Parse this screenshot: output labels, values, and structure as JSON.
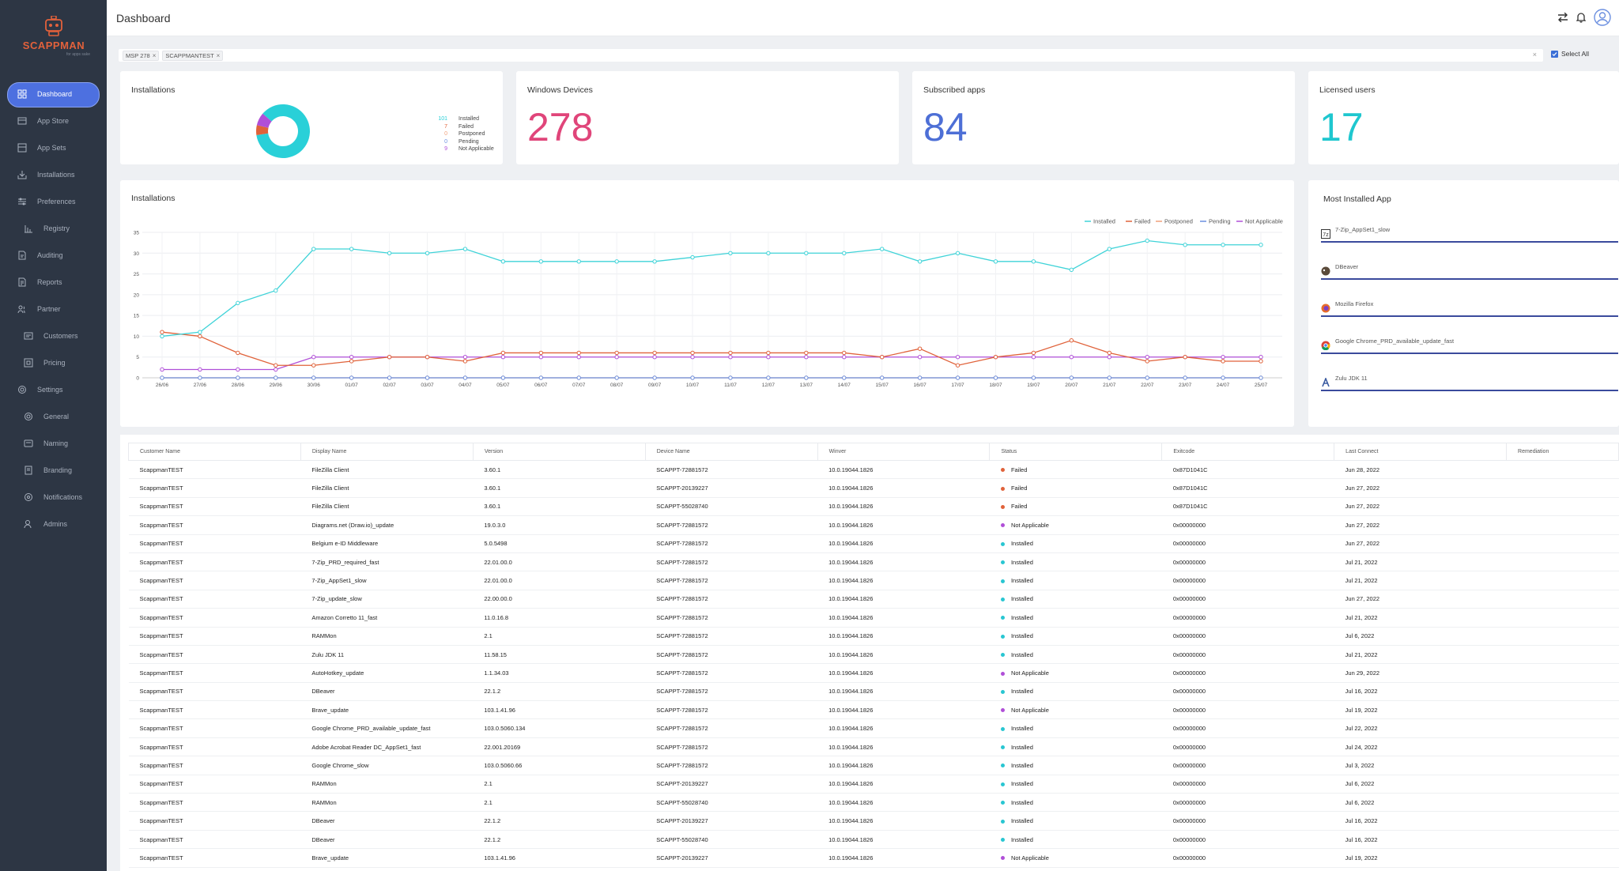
{
  "app": {
    "brand": "SCAPPMAN",
    "tagline": "for apps sake",
    "page_title": "Dashboard"
  },
  "sidebar": {
    "items": [
      {
        "label": "Dashboard",
        "icon": "dashboard-icon",
        "active": true
      },
      {
        "label": "App Store",
        "icon": "store-icon"
      },
      {
        "label": "App Sets",
        "icon": "appsets-icon"
      },
      {
        "label": "Installations",
        "icon": "installations-icon"
      },
      {
        "label": "Preferences",
        "icon": "preferences-icon"
      },
      {
        "label": "Registry",
        "icon": "registry-icon",
        "sub": true
      },
      {
        "label": "Auditing",
        "icon": "auditing-icon"
      },
      {
        "label": "Reports",
        "icon": "reports-icon"
      },
      {
        "label": "Partner",
        "icon": "partner-icon"
      },
      {
        "label": "Customers",
        "icon": "customers-icon",
        "sub": true
      },
      {
        "label": "Pricing",
        "icon": "pricing-icon",
        "sub": true
      },
      {
        "label": "Settings",
        "icon": "settings-icon"
      },
      {
        "label": "General",
        "icon": "general-icon",
        "sub": true
      },
      {
        "label": "Naming",
        "icon": "naming-icon",
        "sub": true
      },
      {
        "label": "Branding",
        "icon": "branding-icon",
        "sub": true
      },
      {
        "label": "Notifications",
        "icon": "notifications-icon",
        "sub": true
      },
      {
        "label": "Admins",
        "icon": "admins-icon",
        "sub": true
      }
    ]
  },
  "filter": {
    "chips": [
      "MSP 278",
      "SCAPPMANTEST"
    ],
    "select_all_label": "Select All"
  },
  "cards": {
    "installations": {
      "title": "Installations",
      "legend": [
        {
          "count": "101",
          "label": "Installed",
          "color": "#29d0d8"
        },
        {
          "count": "7",
          "label": "Failed",
          "color": "#e0623a"
        },
        {
          "count": "0",
          "label": "Postponed",
          "color": "#f0a07a"
        },
        {
          "count": "0",
          "label": "Pending",
          "color": "#6a8fe0"
        },
        {
          "count": "9",
          "label": "Not Applicable",
          "color": "#b04fd8"
        }
      ]
    },
    "windows_devices": {
      "title": "Windows Devices",
      "value": "278",
      "color": "#e0457a"
    },
    "subscribed_apps": {
      "title": "Subscribed apps",
      "value": "84",
      "color": "#4d6fd6"
    },
    "licensed_users": {
      "title": "Licensed users",
      "value": "17",
      "color": "#1fc7cf"
    }
  },
  "chart_data": [
    {
      "type": "pie",
      "title": "Installations",
      "categories": [
        "Installed",
        "Failed",
        "Postponed",
        "Pending",
        "Not Applicable"
      ],
      "values": [
        101,
        7,
        0,
        0,
        9
      ],
      "colors": [
        "#29d0d8",
        "#e0623a",
        "#f0a07a",
        "#6a8fe0",
        "#b04fd8"
      ]
    },
    {
      "type": "line",
      "title": "Installations",
      "categories": [
        "26/06",
        "27/06",
        "28/06",
        "29/06",
        "30/06",
        "01/07",
        "02/07",
        "03/07",
        "04/07",
        "05/07",
        "06/07",
        "07/07",
        "08/07",
        "09/07",
        "10/07",
        "11/07",
        "12/07",
        "13/07",
        "14/07",
        "15/07",
        "16/07",
        "17/07",
        "18/07",
        "19/07",
        "20/07",
        "21/07",
        "22/07",
        "23/07",
        "24/07",
        "25/07"
      ],
      "yticks": [
        0,
        5,
        10,
        15,
        20,
        25,
        30,
        35
      ],
      "ylim": [
        0,
        35
      ],
      "series": [
        {
          "name": "Installed",
          "color": "#3fd3d8",
          "values": [
            10,
            11,
            18,
            21,
            31,
            31,
            30,
            30,
            31,
            28,
            28,
            28,
            28,
            28,
            29,
            30,
            30,
            30,
            30,
            31,
            28,
            30,
            28,
            28,
            26,
            31,
            33,
            32,
            32,
            32
          ]
        },
        {
          "name": "Failed",
          "color": "#e0623a",
          "values": [
            11,
            10,
            6,
            3,
            3,
            4,
            5,
            5,
            4,
            6,
            6,
            6,
            6,
            6,
            6,
            6,
            6,
            6,
            6,
            5,
            7,
            3,
            5,
            6,
            9,
            6,
            4,
            5,
            4,
            4
          ]
        },
        {
          "name": "Postponed",
          "color": "#f0a07a",
          "values": [
            0,
            0,
            0,
            0,
            0,
            0,
            0,
            0,
            0,
            0,
            0,
            0,
            0,
            0,
            0,
            0,
            0,
            0,
            0,
            0,
            0,
            0,
            0,
            0,
            0,
            0,
            0,
            0,
            0,
            0
          ]
        },
        {
          "name": "Pending",
          "color": "#6a8fe0",
          "values": [
            0,
            0,
            0,
            0,
            0,
            0,
            0,
            0,
            0,
            0,
            0,
            0,
            0,
            0,
            0,
            0,
            0,
            0,
            0,
            0,
            0,
            0,
            0,
            0,
            0,
            0,
            0,
            0,
            0,
            0
          ]
        },
        {
          "name": "Not Applicable",
          "color": "#b04fd8",
          "values": [
            2,
            2,
            2,
            2,
            5,
            5,
            5,
            5,
            5,
            5,
            5,
            5,
            5,
            5,
            5,
            5,
            5,
            5,
            5,
            5,
            5,
            5,
            5,
            5,
            5,
            5,
            5,
            5,
            5,
            5
          ]
        }
      ]
    }
  ],
  "most_installed": {
    "title": "Most Installed App",
    "items": [
      {
        "label": "7-Zip_AppSet1_slow",
        "icon": "7zip-icon"
      },
      {
        "label": "DBeaver",
        "icon": "dbeaver-icon"
      },
      {
        "label": "Mozilla Firefox",
        "icon": "firefox-icon"
      },
      {
        "label": "Google Chrome_PRD_available_update_fast",
        "icon": "chrome-icon"
      },
      {
        "label": "Zulu JDK 11",
        "icon": "zulu-icon"
      }
    ]
  },
  "table": {
    "columns": [
      "Customer Name",
      "Display Name",
      "Version",
      "Device Name",
      "Winver",
      "Status",
      "Exitcode",
      "Last Connect",
      "Remediation"
    ],
    "status_colors": {
      "Failed": "#e0623a",
      "Installed": "#29c6d2",
      "Not Applicable": "#b04fd8"
    },
    "rows": [
      [
        "ScappmanTEST",
        "FileZilla Client",
        "3.60.1",
        "SCAPPT-72881572",
        "10.0.19044.1826",
        "Failed",
        "0x87D1041C",
        "Jun 28, 2022",
        ""
      ],
      [
        "ScappmanTEST",
        "FileZilla Client",
        "3.60.1",
        "SCAPPT-20139227",
        "10.0.19044.1826",
        "Failed",
        "0x87D1041C",
        "Jun 27, 2022",
        ""
      ],
      [
        "ScappmanTEST",
        "FileZilla Client",
        "3.60.1",
        "SCAPPT-55028740",
        "10.0.19044.1826",
        "Failed",
        "0x87D1041C",
        "Jun 27, 2022",
        ""
      ],
      [
        "ScappmanTEST",
        "Diagrams.net (Draw.io)_update",
        "19.0.3.0",
        "SCAPPT-72881572",
        "10.0.19044.1826",
        "Not Applicable",
        "0x00000000",
        "Jun 27, 2022",
        ""
      ],
      [
        "ScappmanTEST",
        "Belgium e-ID Middleware",
        "5.0.5498",
        "SCAPPT-72881572",
        "10.0.19044.1826",
        "Installed",
        "0x00000000",
        "Jun 27, 2022",
        ""
      ],
      [
        "ScappmanTEST",
        "7-Zip_PRD_required_fast",
        "22.01.00.0",
        "SCAPPT-72881572",
        "10.0.19044.1826",
        "Installed",
        "0x00000000",
        "Jul 21, 2022",
        ""
      ],
      [
        "ScappmanTEST",
        "7-Zip_AppSet1_slow",
        "22.01.00.0",
        "SCAPPT-72881572",
        "10.0.19044.1826",
        "Installed",
        "0x00000000",
        "Jul 21, 2022",
        ""
      ],
      [
        "ScappmanTEST",
        "7-Zip_update_slow",
        "22.00.00.0",
        "SCAPPT-72881572",
        "10.0.19044.1826",
        "Installed",
        "0x00000000",
        "Jun 27, 2022",
        ""
      ],
      [
        "ScappmanTEST",
        "Amazon Corretto 11_fast",
        "11.0.16.8",
        "SCAPPT-72881572",
        "10.0.19044.1826",
        "Installed",
        "0x00000000",
        "Jul 21, 2022",
        ""
      ],
      [
        "ScappmanTEST",
        "RAMMon",
        "2.1",
        "SCAPPT-72881572",
        "10.0.19044.1826",
        "Installed",
        "0x00000000",
        "Jul 6, 2022",
        ""
      ],
      [
        "ScappmanTEST",
        "Zulu JDK 11",
        "11.58.15",
        "SCAPPT-72881572",
        "10.0.19044.1826",
        "Installed",
        "0x00000000",
        "Jul 21, 2022",
        ""
      ],
      [
        "ScappmanTEST",
        "AutoHotkey_update",
        "1.1.34.03",
        "SCAPPT-72881572",
        "10.0.19044.1826",
        "Not Applicable",
        "0x00000000",
        "Jun 29, 2022",
        ""
      ],
      [
        "ScappmanTEST",
        "DBeaver",
        "22.1.2",
        "SCAPPT-72881572",
        "10.0.19044.1826",
        "Installed",
        "0x00000000",
        "Jul 16, 2022",
        ""
      ],
      [
        "ScappmanTEST",
        "Brave_update",
        "103.1.41.96",
        "SCAPPT-72881572",
        "10.0.19044.1826",
        "Not Applicable",
        "0x00000000",
        "Jul 19, 2022",
        ""
      ],
      [
        "ScappmanTEST",
        "Google Chrome_PRD_available_update_fast",
        "103.0.5060.134",
        "SCAPPT-72881572",
        "10.0.19044.1826",
        "Installed",
        "0x00000000",
        "Jul 22, 2022",
        ""
      ],
      [
        "ScappmanTEST",
        "Adobe Acrobat Reader DC_AppSet1_fast",
        "22.001.20169",
        "SCAPPT-72881572",
        "10.0.19044.1826",
        "Installed",
        "0x00000000",
        "Jul 24, 2022",
        ""
      ],
      [
        "ScappmanTEST",
        "Google Chrome_slow",
        "103.0.5060.66",
        "SCAPPT-72881572",
        "10.0.19044.1826",
        "Installed",
        "0x00000000",
        "Jul 3, 2022",
        ""
      ],
      [
        "ScappmanTEST",
        "RAMMon",
        "2.1",
        "SCAPPT-20139227",
        "10.0.19044.1826",
        "Installed",
        "0x00000000",
        "Jul 6, 2022",
        ""
      ],
      [
        "ScappmanTEST",
        "RAMMon",
        "2.1",
        "SCAPPT-55028740",
        "10.0.19044.1826",
        "Installed",
        "0x00000000",
        "Jul 6, 2022",
        ""
      ],
      [
        "ScappmanTEST",
        "DBeaver",
        "22.1.2",
        "SCAPPT-20139227",
        "10.0.19044.1826",
        "Installed",
        "0x00000000",
        "Jul 16, 2022",
        ""
      ],
      [
        "ScappmanTEST",
        "DBeaver",
        "22.1.2",
        "SCAPPT-55028740",
        "10.0.19044.1826",
        "Installed",
        "0x00000000",
        "Jul 16, 2022",
        ""
      ],
      [
        "ScappmanTEST",
        "Brave_update",
        "103.1.41.96",
        "SCAPPT-20139227",
        "10.0.19044.1826",
        "Not Applicable",
        "0x00000000",
        "Jul 19, 2022",
        ""
      ]
    ]
  }
}
